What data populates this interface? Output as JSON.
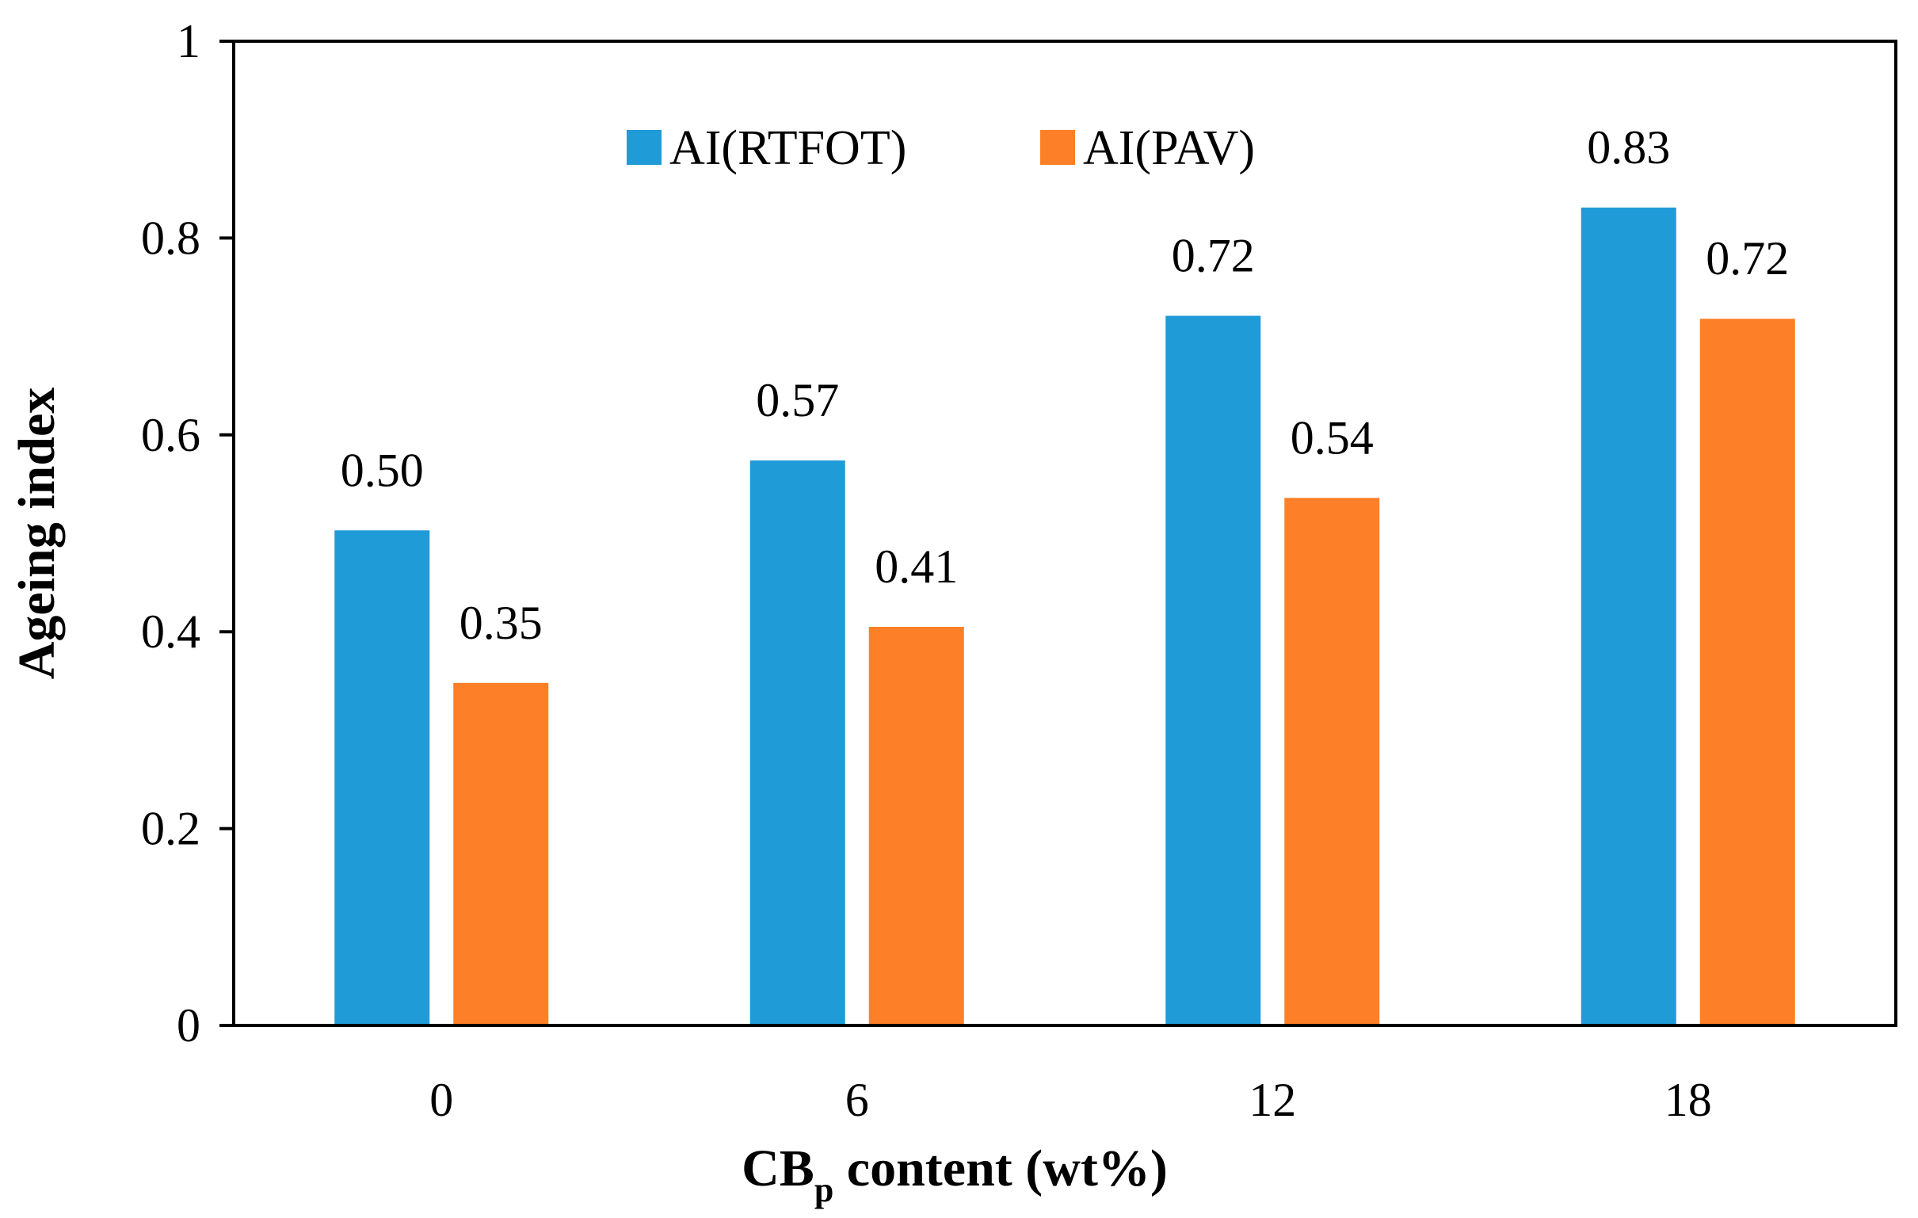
{
  "chart_data": {
    "type": "bar",
    "title": "",
    "xlabel": "CB",
    "xlabel_subscript": "p",
    "xlabel_suffix": " content (wt%)",
    "ylabel": "Ageing index",
    "categories": [
      "0",
      "6",
      "12",
      "18"
    ],
    "ylim": [
      0,
      1
    ],
    "yticks": [
      "0",
      "0.2",
      "0.4",
      "0.6",
      "0.8",
      "1"
    ],
    "grid": false,
    "legend_position": "top-center",
    "series": [
      {
        "name": "AI(RTFOT)",
        "color": "#1F9BD7",
        "values": [
          0.503,
          0.574,
          0.721,
          0.831
        ],
        "labels": [
          "0.50",
          "0.57",
          "0.72",
          "0.83"
        ]
      },
      {
        "name": "AI(PAV)",
        "color": "#FD7F27",
        "values": [
          0.348,
          0.405,
          0.536,
          0.718
        ],
        "labels": [
          "0.35",
          "0.41",
          "0.54",
          "0.72"
        ]
      }
    ]
  }
}
